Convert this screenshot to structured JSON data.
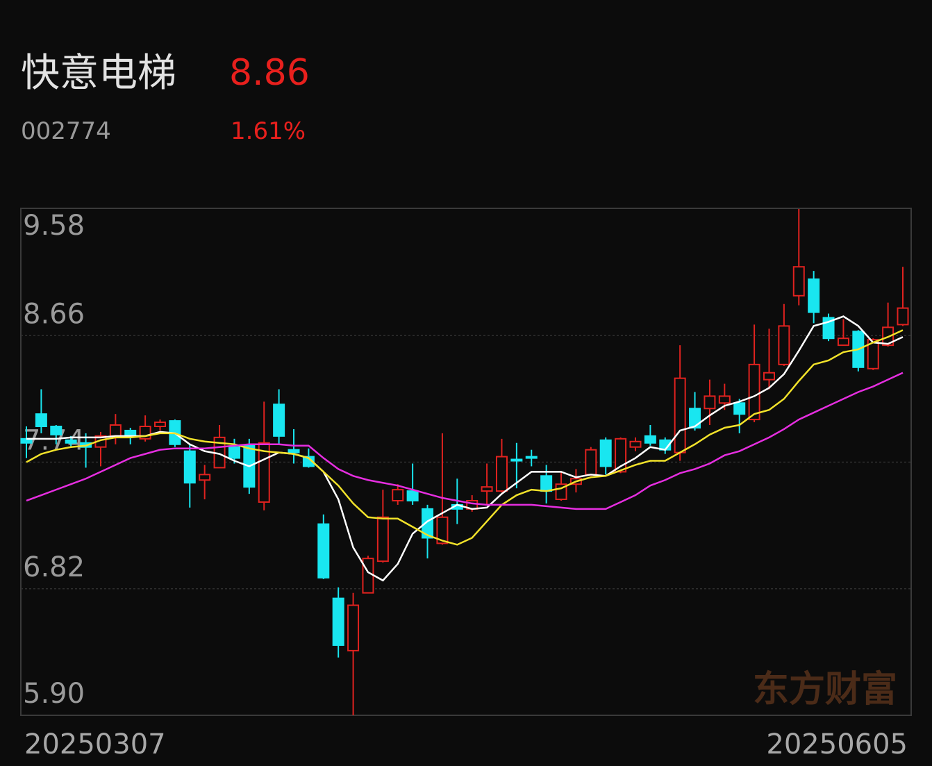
{
  "header": {
    "name": "快意电梯",
    "price": "8.86",
    "code": "002774",
    "change": "1.61%"
  },
  "chart_data": {
    "type": "candlestick",
    "watermark": "东方财富",
    "up_color": "#e0221f",
    "down_color": "#19e6f0",
    "categories": [
      "20250307",
      null,
      null,
      null,
      null,
      null,
      null,
      null,
      null,
      null,
      null,
      null,
      null,
      null,
      null,
      null,
      null,
      null,
      null,
      null,
      null,
      null,
      null,
      null,
      null,
      null,
      null,
      null,
      null,
      null,
      null,
      null,
      null,
      null,
      null,
      null,
      null,
      null,
      null,
      null,
      null,
      null,
      null,
      null,
      null,
      null,
      null,
      null,
      null,
      null,
      null,
      null,
      null,
      null,
      null,
      null,
      null,
      null,
      null,
      "20250605"
    ],
    "open": [
      7.91,
      8.09,
      8.0,
      7.9,
      7.88,
      7.85,
      7.93,
      7.97,
      7.91,
      8.0,
      8.04,
      7.82,
      7.61,
      7.7,
      7.85,
      7.86,
      7.45,
      8.16,
      7.83,
      7.78,
      7.29,
      6.75,
      6.37,
      6.79,
      7.02,
      7.46,
      7.53,
      7.4,
      7.15,
      7.43,
      7.4,
      7.53,
      7.53,
      7.76,
      7.78,
      7.64,
      7.47,
      7.58,
      7.65,
      7.9,
      7.67,
      7.85,
      7.93,
      7.9,
      7.81,
      8.13,
      8.13,
      8.17,
      8.17,
      8.05,
      8.34,
      8.45,
      8.95,
      9.07,
      8.79,
      8.59,
      8.69,
      8.42,
      8.59,
      8.74
    ],
    "high": [
      8.0,
      8.27,
      8.01,
      7.93,
      7.95,
      7.96,
      8.09,
      7.99,
      8.08,
      8.05,
      8.05,
      7.87,
      7.72,
      8.01,
      7.91,
      7.91,
      8.18,
      8.27,
      7.98,
      7.84,
      7.36,
      6.83,
      6.79,
      7.06,
      7.54,
      7.58,
      7.73,
      7.43,
      7.95,
      7.62,
      7.5,
      7.73,
      7.91,
      7.88,
      7.83,
      7.72,
      7.67,
      7.69,
      7.85,
      7.92,
      7.92,
      7.92,
      8.01,
      7.92,
      8.59,
      8.25,
      8.34,
      8.31,
      8.2,
      8.74,
      8.71,
      8.89,
      9.58,
      9.13,
      8.82,
      8.78,
      8.7,
      8.64,
      8.9,
      9.16
    ],
    "low": [
      7.77,
      7.95,
      7.87,
      7.85,
      7.7,
      7.71,
      7.87,
      7.87,
      7.89,
      7.97,
      7.85,
      7.41,
      7.47,
      7.7,
      7.73,
      7.51,
      7.39,
      7.87,
      7.73,
      7.7,
      6.89,
      6.32,
      5.9,
      6.79,
      7.01,
      7.43,
      7.43,
      7.04,
      7.14,
      7.29,
      7.38,
      7.43,
      7.52,
      7.55,
      7.71,
      7.44,
      7.46,
      7.52,
      7.64,
      7.65,
      7.66,
      7.82,
      7.86,
      7.8,
      7.75,
      7.97,
      8.01,
      8.12,
      7.95,
      8.03,
      8.27,
      8.44,
      8.88,
      8.75,
      8.62,
      8.59,
      8.4,
      8.41,
      8.58,
      8.73
    ],
    "close": [
      7.88,
      8.0,
      7.94,
      7.88,
      7.85,
      7.93,
      8.01,
      7.93,
      8.0,
      8.03,
      7.87,
      7.59,
      7.65,
      7.92,
      7.77,
      7.56,
      7.88,
      7.93,
      7.81,
      7.71,
      6.9,
      6.41,
      6.7,
      7.04,
      7.34,
      7.54,
      7.46,
      7.19,
      7.34,
      7.4,
      7.46,
      7.56,
      7.78,
      7.75,
      7.77,
      7.53,
      7.58,
      7.62,
      7.83,
      7.71,
      7.91,
      7.89,
      7.88,
      7.83,
      8.35,
      7.99,
      8.22,
      8.22,
      8.09,
      8.45,
      8.39,
      8.73,
      9.16,
      8.83,
      8.64,
      8.64,
      8.43,
      8.63,
      8.72,
      8.86
    ],
    "lines": [
      {
        "color": "#ffffff",
        "values": [
          7.91,
          7.91,
          7.91,
          7.92,
          7.92,
          7.92,
          7.93,
          7.93,
          7.93,
          7.96,
          7.95,
          7.87,
          7.82,
          7.8,
          7.75,
          7.71,
          7.76,
          7.81,
          7.8,
          7.77,
          7.67,
          7.47,
          7.12,
          6.94,
          6.88,
          7.0,
          7.22,
          7.31,
          7.37,
          7.43,
          7.4,
          7.41,
          7.51,
          7.59,
          7.67,
          7.67,
          7.67,
          7.63,
          7.65,
          7.64,
          7.71,
          7.77,
          7.85,
          7.83,
          7.97,
          8.0,
          8.08,
          8.15,
          8.18,
          8.22,
          8.28,
          8.38,
          8.55,
          8.73,
          8.76,
          8.8,
          8.73,
          8.61,
          8.6,
          8.65
        ]
      },
      {
        "color": "#f2e22a",
        "values": [
          7.74,
          7.8,
          7.83,
          7.85,
          7.86,
          7.9,
          7.92,
          7.92,
          7.93,
          7.95,
          7.95,
          7.91,
          7.89,
          7.88,
          7.87,
          7.84,
          7.82,
          7.81,
          7.8,
          7.77,
          7.67,
          7.57,
          7.44,
          7.34,
          7.33,
          7.33,
          7.27,
          7.21,
          7.17,
          7.14,
          7.19,
          7.31,
          7.43,
          7.5,
          7.54,
          7.53,
          7.55,
          7.6,
          7.63,
          7.64,
          7.68,
          7.72,
          7.75,
          7.75,
          7.81,
          7.87,
          7.94,
          7.99,
          8.01,
          8.09,
          8.12,
          8.2,
          8.33,
          8.45,
          8.48,
          8.54,
          8.56,
          8.61,
          8.65,
          8.7
        ]
      },
      {
        "color": "#e62ee0",
        "values": [
          7.46,
          7.5,
          7.54,
          7.58,
          7.62,
          7.67,
          7.72,
          7.77,
          7.8,
          7.83,
          7.84,
          7.84,
          7.84,
          7.85,
          7.86,
          7.87,
          7.87,
          7.87,
          7.86,
          7.86,
          7.77,
          7.69,
          7.64,
          7.61,
          7.59,
          7.57,
          7.54,
          7.51,
          7.48,
          7.46,
          7.44,
          7.43,
          7.43,
          7.43,
          7.43,
          7.42,
          7.41,
          7.4,
          7.4,
          7.4,
          7.45,
          7.5,
          7.57,
          7.61,
          7.66,
          7.69,
          7.73,
          7.79,
          7.82,
          7.87,
          7.92,
          7.98,
          8.05,
          8.1,
          8.15,
          8.2,
          8.25,
          8.29,
          8.34,
          8.39
        ]
      }
    ],
    "ylim": [
      5.9,
      9.58
    ],
    "yticks": [
      9.58,
      8.66,
      7.74,
      6.82,
      {
        "value": 5.9,
        "label": "5.90"
      }
    ],
    "grid": true
  }
}
